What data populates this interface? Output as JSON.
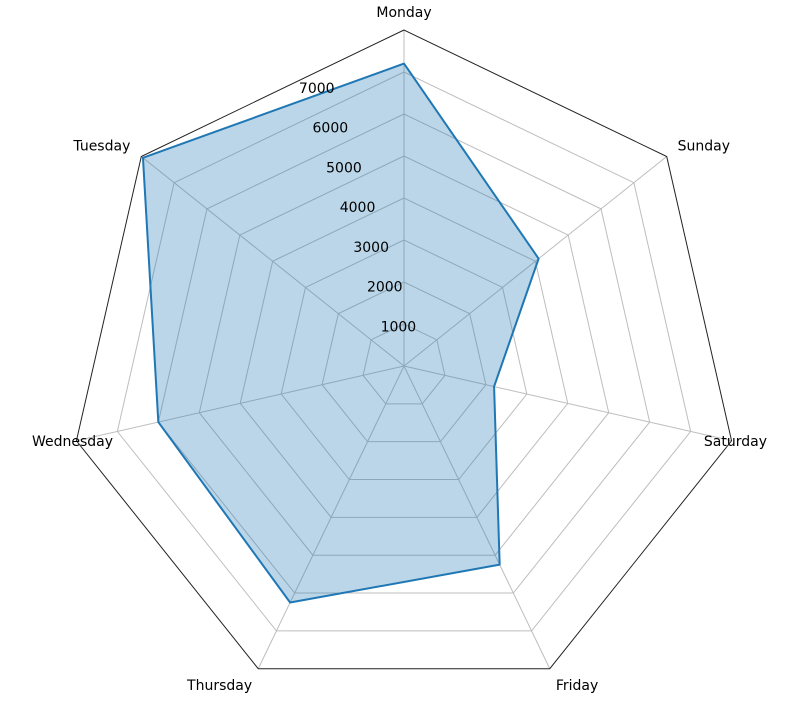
{
  "chart_data": {
    "type": "radar",
    "title": "",
    "categories": [
      "Monday",
      "Tuesday",
      "Wednesday",
      "Thursday",
      "Friday",
      "Saturday",
      "Sunday"
    ],
    "series": [
      {
        "values": [
          7200,
          7950,
          6000,
          6250,
          5250,
          2200,
          4100
        ],
        "line_color": "#1f77b4",
        "fill_color": "#1f77b4",
        "fill_opacity": 0.3
      }
    ],
    "rlim": [
      0,
      8000
    ],
    "r_ticks": [
      1000,
      2000,
      3000,
      4000,
      5000,
      6000,
      7000
    ],
    "r_tick_labels": [
      "1000",
      "2000",
      "3000",
      "4000",
      "5000",
      "6000",
      "7000"
    ],
    "grid": true,
    "grid_shape": "polygon",
    "start_angle": "top",
    "direction": "counterclockwise"
  }
}
